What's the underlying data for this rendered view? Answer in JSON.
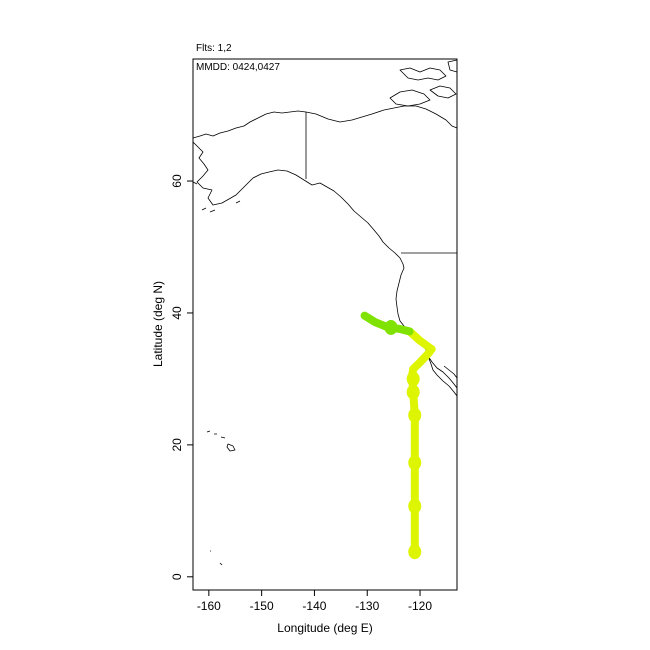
{
  "header": {
    "flights": "Flts: 1,2",
    "dates": "MMDD: 0424,0427"
  },
  "axes": {
    "xlabel": "Longitude (deg E)",
    "ylabel": "Latitude (deg N)",
    "xlim": [
      -163,
      -113
    ],
    "ylim": [
      -2,
      78.5
    ],
    "xticks": [
      -160,
      -150,
      -140,
      -130,
      -120
    ],
    "yticks": [
      0,
      20,
      40,
      60
    ]
  },
  "colors": {
    "flight1": "#ddf500",
    "flight2": "#7fe200",
    "coast": "#000000"
  },
  "chart_data": {
    "type": "line",
    "series": [
      {
        "name": "1",
        "lon": [
          -121.0,
          -121.0,
          -121.0,
          -121.0,
          -121.0,
          -121.0,
          -121.0,
          -121.3,
          -121.5,
          -121.3,
          -120.0,
          -118.5,
          -117.8,
          -120.0,
          -122.0
        ],
        "lat": [
          3.8,
          7.0,
          10.7,
          14.0,
          17.3,
          21.0,
          24.5,
          28.0,
          30.5,
          31.5,
          32.5,
          33.8,
          34.5,
          35.8,
          37.2
        ]
      },
      {
        "name": "2",
        "lon": [
          -122.0,
          -124.0,
          -126.0,
          -128.5,
          -130.5
        ],
        "lat": [
          37.2,
          37.6,
          37.8,
          38.6,
          39.6
        ]
      }
    ],
    "markers": [
      {
        "lon": -121.0,
        "lat": 3.8
      },
      {
        "lon": -121.0,
        "lat": 10.7
      },
      {
        "lon": -121.0,
        "lat": 17.3
      },
      {
        "lon": -121.0,
        "lat": 24.5
      },
      {
        "lon": -121.3,
        "lat": 28.0
      },
      {
        "lon": -121.3,
        "lat": 30.0
      },
      {
        "lon": -125.5,
        "lat": 37.8
      }
    ]
  }
}
